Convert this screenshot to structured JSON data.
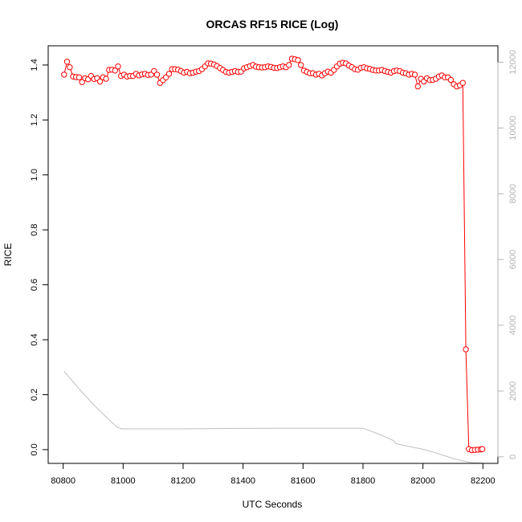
{
  "chart_data": {
    "type": "scatter",
    "title": "ORCAS RF15 RICE (Log)",
    "xlabel": "UTC Seconds",
    "ylabel": "RICE",
    "xlim": [
      80750,
      82250
    ],
    "ylim": [
      -0.05,
      1.47
    ],
    "y2lim": [
      -200,
      12500
    ],
    "x_ticks": [
      80800,
      81000,
      81200,
      81400,
      81600,
      81800,
      82000,
      82200
    ],
    "y_ticks": [
      0.0,
      0.2,
      0.4,
      0.6,
      0.8,
      1.0,
      1.2,
      1.4
    ],
    "y2_ticks": [
      0,
      2000,
      4000,
      6000,
      8000,
      10000,
      12000
    ],
    "colors": {
      "rice": "#ff0000",
      "altitude": "#bebebe",
      "right_axis": "#b3b3b3"
    },
    "series": [
      {
        "axis": "left",
        "style": "points-with-line",
        "x": [
          80803,
          80813,
          80822,
          80833,
          80843,
          80853,
          80863,
          80873,
          80883,
          80893,
          80903,
          80913,
          80923,
          80933,
          80943,
          80953,
          80963,
          80973,
          80983,
          80993,
          81003,
          81013,
          81023,
          81033,
          81043,
          81053,
          81063,
          81073,
          81083,
          81093,
          81103,
          81113,
          81123,
          81133,
          81143,
          81153,
          81163,
          81173,
          81183,
          81193,
          81203,
          81213,
          81223,
          81233,
          81243,
          81253,
          81263,
          81273,
          81283,
          81293,
          81303,
          81313,
          81323,
          81333,
          81343,
          81353,
          81363,
          81373,
          81383,
          81393,
          81403,
          81413,
          81423,
          81433,
          81443,
          81453,
          81463,
          81473,
          81483,
          81493,
          81503,
          81513,
          81523,
          81533,
          81543,
          81553,
          81563,
          81573,
          81583,
          81593,
          81603,
          81613,
          81623,
          81633,
          81643,
          81653,
          81663,
          81673,
          81683,
          81693,
          81703,
          81713,
          81723,
          81733,
          81743,
          81753,
          81763,
          81773,
          81783,
          81793,
          81803,
          81813,
          81823,
          81833,
          81843,
          81853,
          81863,
          81873,
          81883,
          81893,
          81903,
          81913,
          81923,
          81933,
          81943,
          81953,
          81963,
          81973,
          81983,
          81993,
          82003,
          82013,
          82023,
          82033,
          82043,
          82053,
          82063,
          82073,
          82083,
          82093,
          82103,
          82113,
          82123,
          82133,
          82143,
          82153,
          82163,
          82173,
          82183,
          82193,
          82198
        ],
        "y": [
          1.365,
          1.412,
          1.392,
          1.358,
          1.356,
          1.355,
          1.338,
          1.352,
          1.348,
          1.36,
          1.349,
          1.352,
          1.34,
          1.355,
          1.35,
          1.382,
          1.383,
          1.38,
          1.395,
          1.36,
          1.365,
          1.358,
          1.36,
          1.36,
          1.368,
          1.362,
          1.366,
          1.368,
          1.364,
          1.365,
          1.378,
          1.365,
          1.335,
          1.345,
          1.355,
          1.368,
          1.385,
          1.385,
          1.383,
          1.378,
          1.372,
          1.375,
          1.37,
          1.372,
          1.376,
          1.378,
          1.385,
          1.395,
          1.406,
          1.405,
          1.402,
          1.396,
          1.389,
          1.382,
          1.375,
          1.372,
          1.375,
          1.378,
          1.375,
          1.376,
          1.388,
          1.392,
          1.396,
          1.4,
          1.394,
          1.392,
          1.391,
          1.392,
          1.395,
          1.393,
          1.39,
          1.389,
          1.392,
          1.395,
          1.392,
          1.4,
          1.423,
          1.421,
          1.418,
          1.4,
          1.38,
          1.375,
          1.37,
          1.37,
          1.365,
          1.368,
          1.362,
          1.37,
          1.376,
          1.372,
          1.382,
          1.395,
          1.405,
          1.408,
          1.406,
          1.398,
          1.392,
          1.385,
          1.383,
          1.39,
          1.392,
          1.388,
          1.386,
          1.382,
          1.38,
          1.38,
          1.382,
          1.378,
          1.375,
          1.372,
          1.378,
          1.38,
          1.378,
          1.372,
          1.37,
          1.365,
          1.368,
          1.365,
          1.322,
          1.35,
          1.34,
          1.352,
          1.345,
          1.346,
          1.35,
          1.358,
          1.362,
          1.355,
          1.355,
          1.346,
          1.33,
          1.322,
          1.326,
          1.335,
          0.365,
          0.002,
          -0.002,
          -0.001,
          0.0,
          0.001,
          0.002
        ]
      },
      {
        "axis": "right",
        "style": "line",
        "x": [
          80803,
          80850,
          80900,
          80950,
          80980,
          80995,
          81000,
          81050,
          81100,
          81200,
          81300,
          81400,
          81500,
          81600,
          81700,
          81750,
          81800,
          81850,
          81900,
          81910,
          81950,
          82000,
          82050,
          82100,
          82130,
          82150,
          82170,
          82200
        ],
        "y": [
          2600,
          2100,
          1600,
          1150,
          900,
          850,
          850,
          850,
          850,
          850,
          860,
          865,
          870,
          870,
          870,
          870,
          870,
          700,
          500,
          400,
          320,
          230,
          100,
          -50,
          -120,
          -160,
          -180,
          -190
        ]
      }
    ]
  }
}
